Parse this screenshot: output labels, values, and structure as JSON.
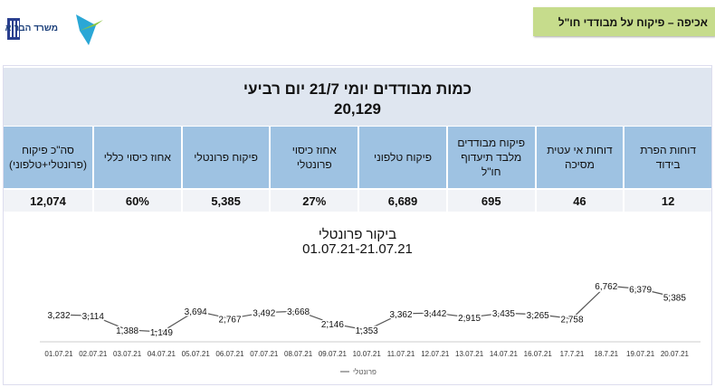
{
  "header": {
    "logo_text": "משרד הבריאות",
    "tag": "אכיפה – פיקוח על מבודדי חו\"ל"
  },
  "summary": {
    "title": "כמות מבודדים יומי 21/7 יום רביעי",
    "total": "20,129"
  },
  "columns": [
    {
      "label": "דוחות הפרת בידוד",
      "value": "12"
    },
    {
      "label": "דוחות אי עטית מסיכה",
      "value": "46"
    },
    {
      "label": "פיקוח מבודדים מלבד תיעדוף חו\"ל",
      "value": "695"
    },
    {
      "label": "פיקוח טלפוני",
      "value": "6,689"
    },
    {
      "label": "אחוז כיסוי פרונטלי",
      "value": "27%"
    },
    {
      "label": "פיקוח פרונטלי",
      "value": "5,385"
    },
    {
      "label": "אחוז כיסוי כללי",
      "value": "60%"
    },
    {
      "label": "סה\"כ פיקוח (פרונטלי+טלפוני)",
      "value": "12,074"
    }
  ],
  "chart_data": {
    "type": "line",
    "title": "ביקור פרונטלי",
    "subtitle": "01.07.21-21.07.21",
    "categories": [
      "01.07.21",
      "02.07.21",
      "03.07.21",
      "04.07.21",
      "05.07.21",
      "06.07.21",
      "07.07.21",
      "08.07.21",
      "09.07.21",
      "10.07.21",
      "11.07.21",
      "12.07.21",
      "13.07.21",
      "14.07.21",
      "16.07.21",
      "17.7.21",
      "18.7.21",
      "19.07.21",
      "20.07.21"
    ],
    "series": [
      {
        "name": "פרונטלי",
        "values": [
          3232,
          3114,
          1388,
          1149,
          3694,
          2767,
          3492,
          3668,
          2146,
          1353,
          3362,
          3442,
          2915,
          3435,
          3265,
          2758,
          6762,
          6379,
          5385
        ]
      }
    ],
    "legend": "bottom",
    "grid": false,
    "line_color": "#555555"
  }
}
